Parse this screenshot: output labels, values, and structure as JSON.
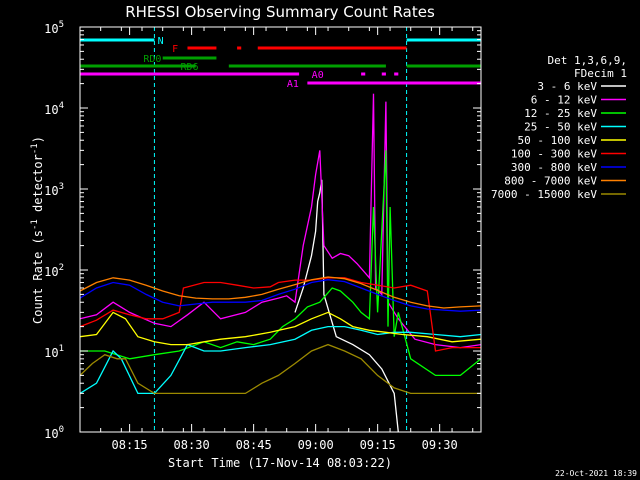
{
  "chart_data": {
    "type": "line",
    "title": "RHESSI Observing Summary Count Rates",
    "xlabel": "Start Time (17-Nov-14 08:03:22)",
    "ylabel_main": "Count Rate (s",
    "ylabel_sup1": "-1",
    "ylabel_mid": " detector",
    "ylabel_sup2": "-1",
    "ylabel_end": ")",
    "log_y": true,
    "ylim": [
      1,
      100000
    ],
    "xlim_min": [
      0,
      97
    ],
    "x_ticks": [
      {
        "t": 12,
        "label": "08:15"
      },
      {
        "t": 27,
        "label": "08:30"
      },
      {
        "t": 42,
        "label": "08:45"
      },
      {
        "t": 57,
        "label": "09:00"
      },
      {
        "t": 72,
        "label": "09:15"
      },
      {
        "t": 87,
        "label": "09:30"
      }
    ],
    "y_ticks": [
      {
        "base": "10",
        "exp": "0",
        "v": 1
      },
      {
        "base": "10",
        "exp": "1",
        "v": 10
      },
      {
        "base": "10",
        "exp": "2",
        "v": 100
      },
      {
        "base": "10",
        "exp": "3",
        "v": 1000
      },
      {
        "base": "10",
        "exp": "4",
        "v": 10000
      },
      {
        "base": "10",
        "exp": "5",
        "v": 100000
      }
    ],
    "legend": {
      "header1": "Det 1,3,6,9,",
      "header2": "FDecim 1",
      "entries": [
        {
          "label": "3 - 6 keV",
          "color": "#ffffff"
        },
        {
          "label": "6 - 12 keV",
          "color": "#ff00ff"
        },
        {
          "label": "12 - 25 keV",
          "color": "#00ff00"
        },
        {
          "label": "25 - 50 keV",
          "color": "#00ffff"
        },
        {
          "label": "50 - 100 keV",
          "color": "#ffff00"
        },
        {
          "label": "100 - 300 keV",
          "color": "#ff0000"
        },
        {
          "label": "300 - 800 keV",
          "color": "#0000ff"
        },
        {
          "label": "800 - 7000 keV",
          "color": "#ff8000"
        },
        {
          "label": "7000 - 15000 keV",
          "color": "#9c8a00"
        }
      ]
    },
    "series": [
      {
        "name": "3 - 6 keV",
        "color": "#ffffff",
        "points": [
          [
            52,
            30
          ],
          [
            54,
            60
          ],
          [
            56,
            150
          ],
          [
            57,
            300
          ],
          [
            57.5,
            700
          ],
          [
            58,
            900
          ],
          [
            58.5,
            1300
          ],
          [
            59,
            50
          ],
          [
            62,
            15
          ],
          [
            66,
            12
          ],
          [
            70,
            9
          ],
          [
            73,
            6
          ],
          [
            76,
            3
          ],
          [
            77,
            1
          ]
        ]
      },
      {
        "name": "6 - 12 keV",
        "color": "#ff00ff",
        "points": [
          [
            0,
            25
          ],
          [
            4,
            28
          ],
          [
            8,
            40
          ],
          [
            12,
            30
          ],
          [
            18,
            22
          ],
          [
            22,
            20
          ],
          [
            26,
            28
          ],
          [
            30,
            40
          ],
          [
            34,
            25
          ],
          [
            40,
            30
          ],
          [
            44,
            40
          ],
          [
            48,
            45
          ],
          [
            50,
            48
          ],
          [
            52,
            40
          ],
          [
            54,
            200
          ],
          [
            56,
            600
          ],
          [
            57,
            1500
          ],
          [
            58,
            3000
          ],
          [
            59,
            200
          ],
          [
            61,
            140
          ],
          [
            63,
            160
          ],
          [
            65,
            150
          ],
          [
            67,
            120
          ],
          [
            70,
            80
          ],
          [
            71,
            15000
          ],
          [
            71.5,
            60
          ],
          [
            73,
            50
          ],
          [
            74,
            12000
          ],
          [
            74.5,
            40
          ],
          [
            77,
            25
          ],
          [
            81,
            14
          ],
          [
            86,
            12
          ],
          [
            92,
            11
          ],
          [
            97,
            12
          ]
        ]
      },
      {
        "name": "12 - 25 keV",
        "color": "#00ff00",
        "points": [
          [
            0,
            10
          ],
          [
            6,
            10
          ],
          [
            12,
            8
          ],
          [
            18,
            9
          ],
          [
            24,
            10
          ],
          [
            30,
            13
          ],
          [
            34,
            11
          ],
          [
            38,
            13
          ],
          [
            42,
            12
          ],
          [
            46,
            14
          ],
          [
            49,
            20
          ],
          [
            52,
            25
          ],
          [
            55,
            35
          ],
          [
            58,
            40
          ],
          [
            61,
            60
          ],
          [
            63,
            55
          ],
          [
            66,
            40
          ],
          [
            68,
            30
          ],
          [
            70,
            25
          ],
          [
            71,
            600
          ],
          [
            72,
            30
          ],
          [
            74,
            3000
          ],
          [
            74.5,
            20
          ],
          [
            75,
            600
          ],
          [
            76,
            15
          ],
          [
            77,
            30
          ],
          [
            80,
            8
          ],
          [
            86,
            5
          ],
          [
            92,
            5
          ],
          [
            97,
            8
          ]
        ]
      },
      {
        "name": "25 - 50 keV",
        "color": "#00ffff",
        "points": [
          [
            0,
            3
          ],
          [
            4,
            4
          ],
          [
            8,
            10
          ],
          [
            10,
            8
          ],
          [
            14,
            3
          ],
          [
            18,
            3
          ],
          [
            22,
            5
          ],
          [
            26,
            12
          ],
          [
            30,
            10
          ],
          [
            34,
            10
          ],
          [
            40,
            11
          ],
          [
            46,
            12
          ],
          [
            52,
            14
          ],
          [
            56,
            18
          ],
          [
            60,
            20
          ],
          [
            64,
            20
          ],
          [
            68,
            18
          ],
          [
            72,
            16
          ],
          [
            76,
            17
          ],
          [
            80,
            17
          ],
          [
            86,
            16
          ],
          [
            92,
            15
          ],
          [
            97,
            16
          ]
        ]
      },
      {
        "name": "50 - 100 keV",
        "color": "#ffff00",
        "points": [
          [
            0,
            15
          ],
          [
            4,
            16
          ],
          [
            8,
            30
          ],
          [
            11,
            25
          ],
          [
            14,
            15
          ],
          [
            18,
            13
          ],
          [
            22,
            12
          ],
          [
            26,
            12
          ],
          [
            30,
            13
          ],
          [
            34,
            14
          ],
          [
            40,
            15
          ],
          [
            46,
            17
          ],
          [
            52,
            20
          ],
          [
            56,
            25
          ],
          [
            60,
            30
          ],
          [
            63,
            25
          ],
          [
            66,
            20
          ],
          [
            70,
            18
          ],
          [
            74,
            17
          ],
          [
            78,
            16
          ],
          [
            84,
            15
          ],
          [
            90,
            13
          ],
          [
            97,
            14
          ]
        ]
      },
      {
        "name": "100 - 300 keV",
        "color": "#ff0000",
        "points": [
          [
            0,
            20
          ],
          [
            4,
            24
          ],
          [
            8,
            32
          ],
          [
            12,
            28
          ],
          [
            16,
            25
          ],
          [
            20,
            25
          ],
          [
            24,
            30
          ],
          [
            25,
            60
          ],
          [
            30,
            70
          ],
          [
            34,
            70
          ],
          [
            38,
            65
          ],
          [
            42,
            60
          ],
          [
            46,
            62
          ],
          [
            48,
            70
          ],
          [
            52,
            75
          ],
          [
            56,
            75
          ],
          [
            60,
            80
          ],
          [
            64,
            80
          ],
          [
            68,
            70
          ],
          [
            72,
            65
          ],
          [
            76,
            60
          ],
          [
            80,
            65
          ],
          [
            84,
            55
          ],
          [
            86,
            10
          ],
          [
            90,
            11
          ],
          [
            97,
            11
          ]
        ]
      },
      {
        "name": "300 - 800 keV",
        "color": "#0000ff",
        "points": [
          [
            0,
            45
          ],
          [
            4,
            60
          ],
          [
            8,
            70
          ],
          [
            12,
            65
          ],
          [
            16,
            50
          ],
          [
            20,
            40
          ],
          [
            24,
            36
          ],
          [
            28,
            38
          ],
          [
            32,
            40
          ],
          [
            36,
            40
          ],
          [
            40,
            40
          ],
          [
            44,
            42
          ],
          [
            48,
            50
          ],
          [
            52,
            58
          ],
          [
            56,
            70
          ],
          [
            60,
            76
          ],
          [
            64,
            72
          ],
          [
            68,
            60
          ],
          [
            72,
            50
          ],
          [
            76,
            42
          ],
          [
            80,
            36
          ],
          [
            84,
            33
          ],
          [
            88,
            32
          ],
          [
            92,
            31
          ],
          [
            97,
            32
          ]
        ]
      },
      {
        "name": "800 - 7000 keV",
        "color": "#ff8000",
        "points": [
          [
            0,
            55
          ],
          [
            4,
            70
          ],
          [
            8,
            80
          ],
          [
            12,
            75
          ],
          [
            16,
            65
          ],
          [
            20,
            55
          ],
          [
            24,
            48
          ],
          [
            28,
            45
          ],
          [
            32,
            44
          ],
          [
            36,
            44
          ],
          [
            40,
            46
          ],
          [
            44,
            50
          ],
          [
            48,
            58
          ],
          [
            52,
            66
          ],
          [
            56,
            76
          ],
          [
            60,
            82
          ],
          [
            64,
            78
          ],
          [
            68,
            68
          ],
          [
            72,
            56
          ],
          [
            76,
            46
          ],
          [
            80,
            40
          ],
          [
            84,
            36
          ],
          [
            88,
            34
          ],
          [
            92,
            35
          ],
          [
            97,
            36
          ]
        ]
      },
      {
        "name": "7000 - 15000 keV",
        "color": "#9c8a00",
        "points": [
          [
            0,
            5
          ],
          [
            3,
            7
          ],
          [
            6,
            9
          ],
          [
            9,
            8
          ],
          [
            11,
            8
          ],
          [
            14,
            4
          ],
          [
            18,
            3
          ],
          [
            22,
            3
          ],
          [
            28,
            3
          ],
          [
            34,
            3
          ],
          [
            40,
            3
          ],
          [
            44,
            4
          ],
          [
            48,
            5
          ],
          [
            52,
            7
          ],
          [
            56,
            10
          ],
          [
            60,
            12
          ],
          [
            64,
            10
          ],
          [
            68,
            8
          ],
          [
            72,
            5
          ],
          [
            76,
            3.5
          ],
          [
            80,
            3
          ],
          [
            86,
            3
          ],
          [
            92,
            3
          ],
          [
            97,
            3
          ]
        ]
      }
    ],
    "flag_bars": [
      {
        "label": "N",
        "color": "#00ffff",
        "row": 40,
        "segments": [
          [
            0,
            18
          ],
          [
            79,
            97
          ]
        ],
        "label_t": 19.5
      },
      {
        "label": "F",
        "color": "#ff0000",
        "row": 48,
        "segments": [
          [
            26,
            33
          ],
          [
            38,
            39
          ],
          [
            43,
            79
          ]
        ],
        "label_t": 23
      },
      {
        "label": "RD0",
        "color": "#00a000",
        "row": 58,
        "segments": [
          [
            20,
            33
          ]
        ],
        "label_t": 17.5
      },
      {
        "label": "RD6",
        "color": "#00a000",
        "row": 66,
        "segments": [
          [
            0,
            28
          ],
          [
            36,
            74
          ],
          [
            79,
            97
          ]
        ],
        "label_t": 26.5
      },
      {
        "label": "A0",
        "color": "#ff00ff",
        "row": 74,
        "segments": [
          [
            0,
            53
          ],
          [
            68,
            69
          ],
          [
            73,
            74
          ],
          [
            76,
            77
          ]
        ],
        "label_t": 57.5
      },
      {
        "label": "A1",
        "color": "#ff00ff",
        "row": 83,
        "segments": [
          [
            55,
            97
          ]
        ],
        "label_t": 51.5
      }
    ],
    "vlines": [
      18,
      79,
      97
    ]
  },
  "footer_date": "22-Oct-2021 18:39"
}
